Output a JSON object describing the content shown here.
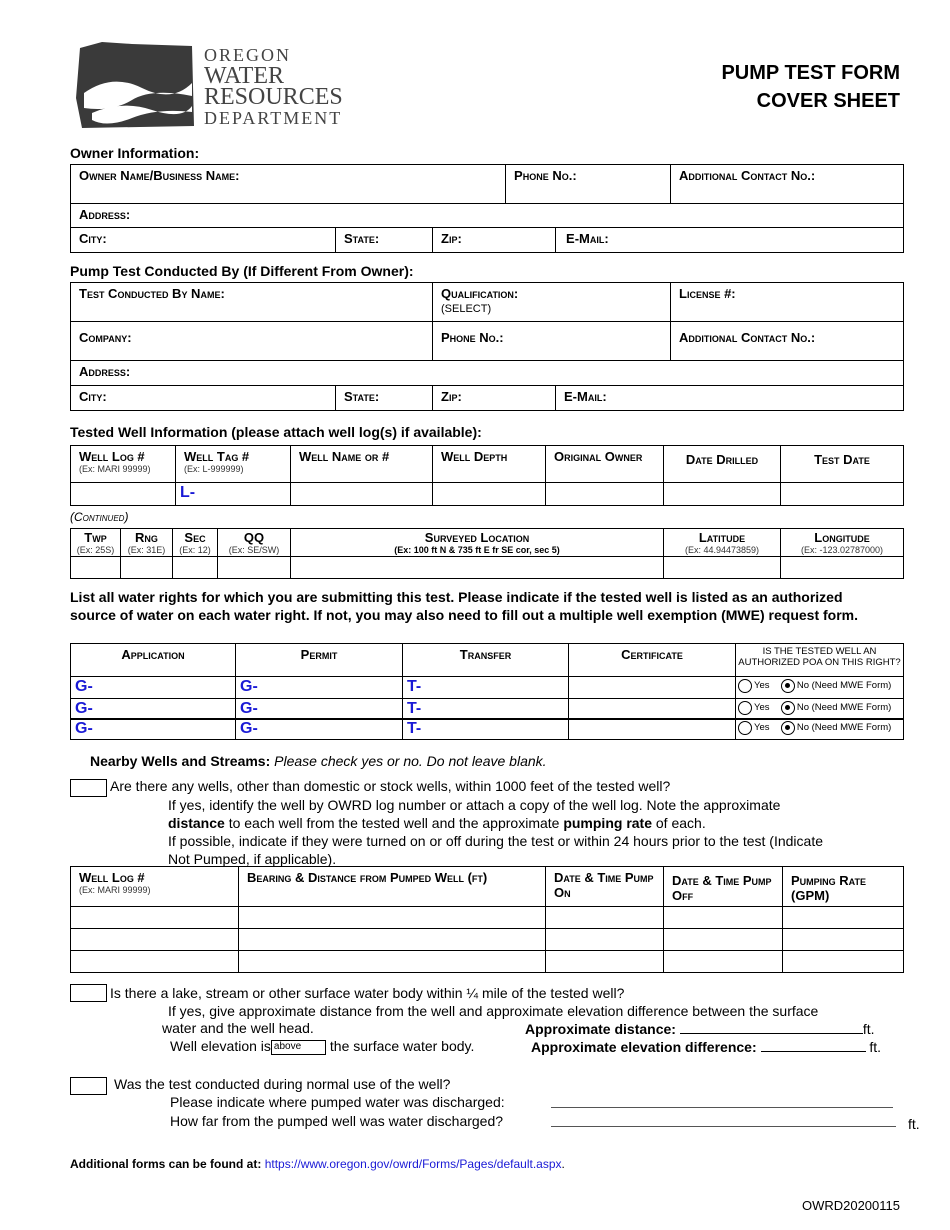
{
  "header": {
    "logo_text": [
      "OREGON",
      "WATER",
      "RESOURCES",
      "DEPARTMENT"
    ],
    "title_line1": "PUMP TEST FORM",
    "title_line2": "COVER SHEET"
  },
  "owner": {
    "section": "Owner Information:",
    "name": "Owner Name/Business Name:",
    "phone": "Phone No.:",
    "additional": "Additional Contact No.:",
    "address": "Address:",
    "city": "City:",
    "state": "State:",
    "zip": "Zip:",
    "email": "E-Mail:"
  },
  "conducted": {
    "section": "Pump Test Conducted By (If Different From Owner):",
    "name": "Test Conducted By Name:",
    "qualification": "Qualification:",
    "qualification_value": "(SELECT)",
    "license": "License #:",
    "company": "Company:",
    "phone": "Phone No.:",
    "additional": "Additional Contact No.:",
    "address": "Address:",
    "city": "City:",
    "state": "State:",
    "zip": "Zip:",
    "email": "E-Mail:"
  },
  "well": {
    "section": "Tested Well Information (please attach well log(s) if available):",
    "headers": [
      {
        "label": "Well Log #",
        "ex": "(Ex: MARI 99999)"
      },
      {
        "label": "Well Tag #",
        "ex": "(Ex: L-999999)"
      },
      {
        "label": "Well Name or #",
        "ex": ""
      },
      {
        "label": "Well Depth",
        "ex": ""
      },
      {
        "label": "Original Owner",
        "ex": ""
      },
      {
        "label": "Date Drilled",
        "ex": ""
      },
      {
        "label": "Test Date",
        "ex": ""
      }
    ],
    "tag_prefix": "L-",
    "continued": "(Continued)",
    "headers2": [
      {
        "label": "Twp",
        "ex": "(Ex: 25S)"
      },
      {
        "label": "Rng",
        "ex": "(Ex: 31E)"
      },
      {
        "label": "Sec",
        "ex": "(Ex: 12)"
      },
      {
        "label": "QQ",
        "ex": "(Ex: SE/SW)"
      },
      {
        "label": "Surveyed Location",
        "ex": "(Ex: 100 ft N & 735 ft E fr SE cor, sec 5)"
      },
      {
        "label": "Latitude",
        "ex": "(Ex: 44.94473859)"
      },
      {
        "label": "Longitude",
        "ex": "(Ex: -123.02787000)"
      }
    ]
  },
  "rights": {
    "intro": "List all water rights for which you are submitting this test. Please indicate if the tested well is listed as an authorized source of water on each water right. If not, you may also need to fill out a multiple well exemption (MWE) request form.",
    "headers": [
      "Application",
      "Permit",
      "Transfer",
      "Certificate",
      "IS THE TESTED WELL AN AUTHORIZED POA ON THIS RIGHT?"
    ],
    "rows": [
      {
        "application": "G-",
        "permit": "G-",
        "transfer": "T-",
        "yes": "Yes",
        "no": "No (Need MWE Form)",
        "selected": "no"
      },
      {
        "application": "G-",
        "permit": "G-",
        "transfer": "T-",
        "yes": "Yes",
        "no": "No (Need MWE Form)",
        "selected": "no"
      },
      {
        "application": "G-",
        "permit": "G-",
        "transfer": "T-",
        "yes": "Yes",
        "no": "No (Need MWE Form)",
        "selected": "no"
      }
    ]
  },
  "nearby": {
    "title": "Nearby Wells and Streams:",
    "instruction": "Please check yes or no. Do not leave blank.",
    "q1": "Are there any wells, other than domestic or stock wells, within 1000 feet of the tested well?",
    "q1_line1": "If yes, identify the well by OWRD log number or attach a copy of the well log. Note the approximate",
    "q1_line2a": "distance",
    "q1_line2b": " to each well from the tested well and the approximate ",
    "q1_line2c": "pumping rate",
    "q1_line2d": " of each.",
    "q1_line3": "If possible, indicate if they were turned on or off during the test or within 24 hours prior to the test (Indicate",
    "q1_line4": "Not Pumped, if applicable).",
    "headers": [
      {
        "label": "Well Log #",
        "ex": "(Ex: MARI 99999)"
      },
      {
        "label": "Bearing & Distance from Pumped Well (ft)",
        "ex": ""
      },
      {
        "label": "Date & Time Pump On",
        "ex": ""
      },
      {
        "label": "Date & Time Pump Off",
        "ex": ""
      },
      {
        "label": "Pumping Rate (GPM)",
        "ex": ""
      }
    ],
    "q2": "Is there a lake, stream or other surface water body within ¼ mile of the tested well?",
    "q2_line1": "If yes, give approximate distance from the well and approximate elevation difference between the surface",
    "q2_line2": "water and the well head.",
    "approx_distance": "Approximate distance:",
    "ft": "ft.",
    "elev_prefix": "Well elevation is",
    "elev_value": "above",
    "elev_suffix": "the surface water body.",
    "approx_elev": "Approximate elevation difference:",
    "q3": "Was the test conducted during normal use of the well?",
    "q3_line1": "Please indicate where pumped water was discharged:",
    "q3_line2": "How far from the pumped well was water discharged?"
  },
  "footer": {
    "label": "Additional forms can be found at:",
    "link": "https://www.oregon.gov/owrd/Forms/Pages/default.aspx",
    "period": ".",
    "code": "OWRD20200115"
  }
}
